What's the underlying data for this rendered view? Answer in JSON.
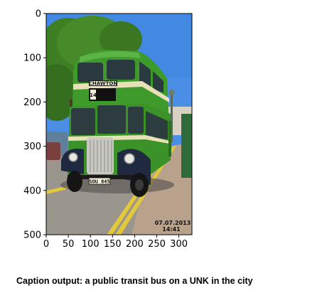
{
  "axes": {
    "x_ticks": [
      "0",
      "50",
      "100",
      "150",
      "200",
      "250",
      "300"
    ],
    "y_ticks": [
      "0",
      "100",
      "200",
      "300",
      "400",
      "500"
    ]
  },
  "photo": {
    "destination_sign": "CHAWTON",
    "route_number": "14",
    "registration_plate": "SOU 845",
    "stamp_date": "07.07.2013",
    "stamp_time": "14:41"
  },
  "caption": "Caption output: a public transit bus on a UNK in the city",
  "colors": {
    "sky": "#4a8ee6",
    "bus_green": "#3f9a2c",
    "bus_cream": "#e8e1b8",
    "road": "#9a958d",
    "pavement": "#b8a28c",
    "tree": "#3d7f22"
  }
}
